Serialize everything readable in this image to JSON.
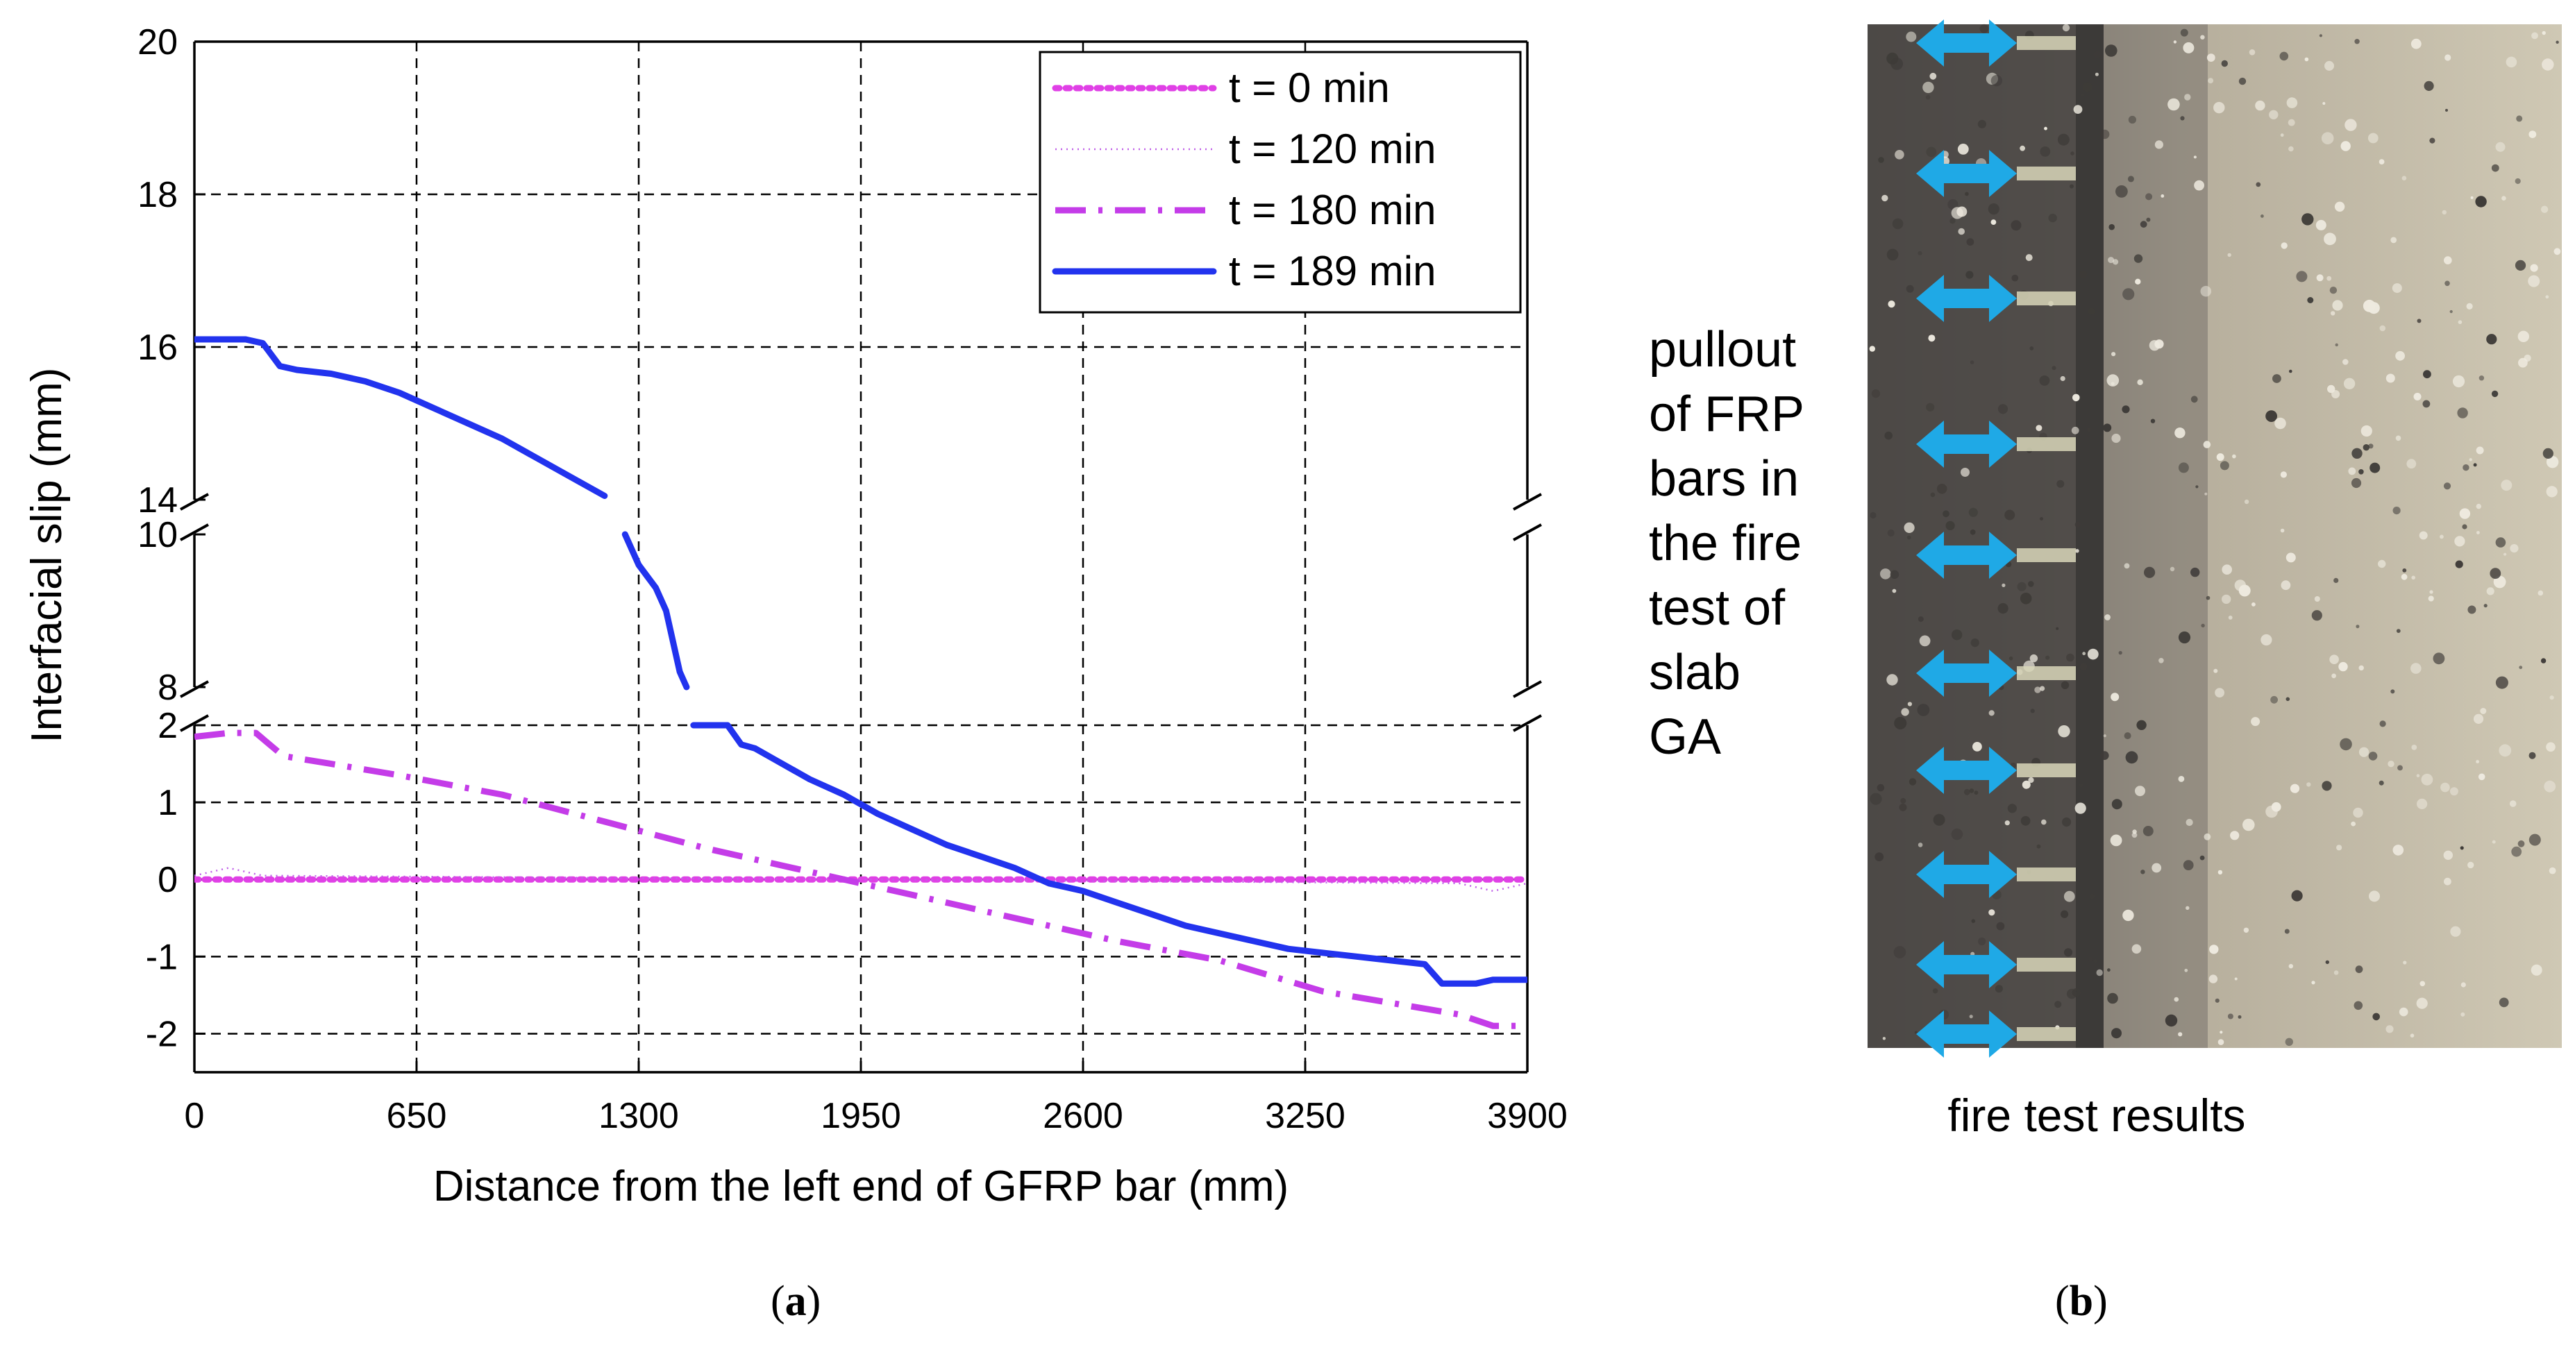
{
  "chart_data": {
    "type": "line",
    "title": "",
    "xlabel": "Distance from the left end of GFRP bar (mm)",
    "ylabel": "Interfacial slip (mm)",
    "xlim": [
      0,
      3900
    ],
    "x_ticks": [
      0,
      650,
      1300,
      1950,
      2600,
      3250,
      3900
    ],
    "x_tick_labels": [
      "0",
      "650",
      "1300",
      "1950",
      "2600",
      "3250",
      "3900"
    ],
    "y_axis_broken": true,
    "y_segments": [
      {
        "range": [
          14,
          20
        ],
        "ticks": [
          14,
          16,
          18,
          20
        ],
        "tick_labels": [
          "14",
          "16",
          "18",
          "20"
        ]
      },
      {
        "range": [
          8,
          10
        ],
        "ticks": [
          8,
          10
        ],
        "tick_labels": [
          "8",
          "10"
        ]
      },
      {
        "range": [
          -2.5,
          2
        ],
        "ticks": [
          -2,
          -1,
          0,
          1,
          2
        ],
        "tick_labels": [
          "-2",
          "-1",
          "0",
          "1",
          "2"
        ]
      }
    ],
    "grid": true,
    "legend_position": "top-right",
    "series": [
      {
        "name": "t = 0 min",
        "color": "#e040e6",
        "style": "dotted",
        "x": [
          0,
          3900
        ],
        "y": [
          0,
          0
        ]
      },
      {
        "name": "t = 120 min",
        "color": "#c060e8",
        "style": "faint-dotted",
        "x": [
          0,
          100,
          200,
          3700,
          3800,
          3900
        ],
        "y": [
          0.05,
          0.15,
          0.05,
          -0.05,
          -0.15,
          -0.05
        ]
      },
      {
        "name": "t = 180 min",
        "color": "#c43ce8",
        "style": "dashdot",
        "x": [
          0,
          100,
          180,
          260,
          400,
          600,
          900,
          1200,
          1500,
          1800,
          1950,
          2100,
          2400,
          2700,
          3000,
          3300,
          3500,
          3700,
          3800,
          3900
        ],
        "y": [
          1.85,
          1.9,
          1.9,
          1.6,
          1.5,
          1.35,
          1.1,
          0.75,
          0.4,
          0.1,
          -0.05,
          -0.2,
          -0.5,
          -0.8,
          -1.05,
          -1.45,
          -1.6,
          -1.75,
          -1.9,
          -1.9
        ]
      },
      {
        "name": "t = 189 min",
        "color": "#2233ee",
        "style": "solid",
        "x": [
          0,
          100,
          150,
          200,
          250,
          300,
          400,
          500,
          600,
          700,
          800,
          900,
          1000,
          1100,
          1200,
          1260,
          1300,
          1350,
          1380,
          1420,
          1440,
          1460,
          1560,
          1600,
          1640,
          1700,
          1800,
          1900,
          2000,
          2100,
          2200,
          2300,
          2400,
          2500,
          2600,
          2700,
          2800,
          2900,
          3000,
          3100,
          3200,
          3300,
          3400,
          3500,
          3600,
          3650,
          3700,
          3750,
          3800,
          3850,
          3900
        ],
        "y": [
          16.1,
          16.1,
          16.1,
          16.05,
          15.75,
          15.7,
          15.65,
          15.55,
          15.4,
          15.2,
          15.0,
          14.8,
          14.55,
          14.3,
          14.05,
          10.0,
          9.6,
          9.3,
          9.0,
          8.2,
          8.0,
          2.0,
          2.0,
          1.75,
          1.7,
          1.55,
          1.3,
          1.1,
          0.85,
          0.65,
          0.45,
          0.3,
          0.15,
          -0.05,
          -0.15,
          -0.3,
          -0.45,
          -0.6,
          -0.7,
          -0.8,
          -0.9,
          -0.95,
          -1.0,
          -1.05,
          -1.1,
          -1.35,
          -1.35,
          -1.35,
          -1.3,
          -1.3,
          -1.3
        ]
      }
    ]
  },
  "side_annotation": {
    "lines": [
      "pullout",
      "of FRP",
      "bars in",
      "the fire",
      "test of",
      "slab",
      "GA"
    ]
  },
  "photo_caption": "fire test results",
  "captions": {
    "a_open": "(",
    "a_letter": "a",
    "a_close": ")",
    "b_open": "(",
    "b_letter": "b",
    "b_close": ")"
  },
  "colors": {
    "arrow": "#1fa9e6",
    "concrete_light": "#c9c2ae",
    "concrete_dark": "#6e6a66"
  }
}
